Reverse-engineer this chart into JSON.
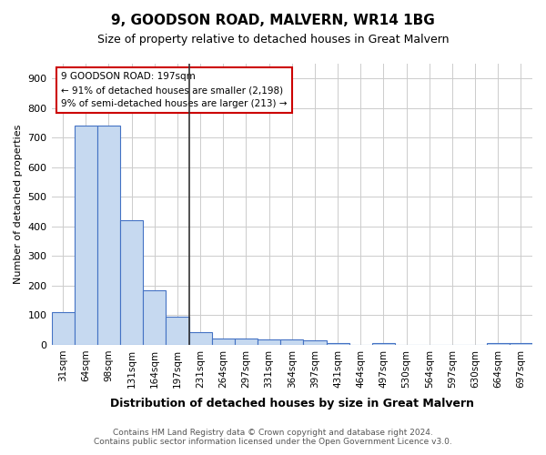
{
  "title": "9, GOODSON ROAD, MALVERN, WR14 1BG",
  "subtitle": "Size of property relative to detached houses in Great Malvern",
  "xlabel": "Distribution of detached houses by size in Great Malvern",
  "ylabel": "Number of detached properties",
  "categories": [
    "31sqm",
    "64sqm",
    "98sqm",
    "131sqm",
    "164sqm",
    "197sqm",
    "231sqm",
    "264sqm",
    "297sqm",
    "331sqm",
    "364sqm",
    "397sqm",
    "431sqm",
    "464sqm",
    "497sqm",
    "530sqm",
    "564sqm",
    "597sqm",
    "630sqm",
    "664sqm",
    "697sqm"
  ],
  "values": [
    110,
    740,
    740,
    420,
    185,
    95,
    43,
    20,
    20,
    17,
    17,
    15,
    5,
    0,
    7,
    0,
    0,
    0,
    0,
    7,
    7
  ],
  "bar_color": "#c6d9f0",
  "bar_edge_color": "#4472c4",
  "highlight_index": 5,
  "highlight_line_color": "#333333",
  "annotation_text": "9 GOODSON ROAD: 197sqm\n← 91% of detached houses are smaller (2,198)\n9% of semi-detached houses are larger (213) →",
  "annotation_box_color": "#ffffff",
  "annotation_box_edge": "#cc0000",
  "ylim": [
    0,
    950
  ],
  "yticks": [
    0,
    100,
    200,
    300,
    400,
    500,
    600,
    700,
    800,
    900
  ],
  "footer_line1": "Contains HM Land Registry data © Crown copyright and database right 2024.",
  "footer_line2": "Contains public sector information licensed under the Open Government Licence v3.0.",
  "background_color": "#ffffff",
  "grid_color": "#cccccc"
}
